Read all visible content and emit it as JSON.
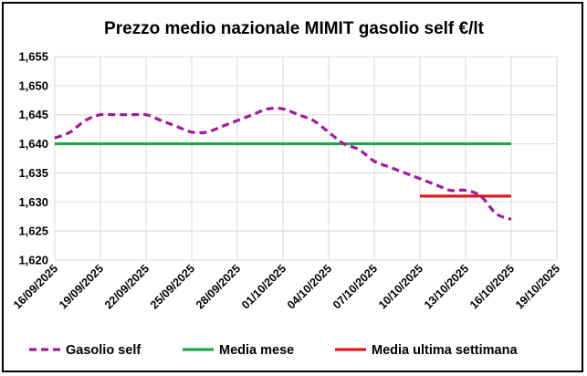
{
  "chart_data": {
    "type": "line",
    "title": "Prezzo medio nazionale MIMIT gasolio self €/lt",
    "xlabel": "",
    "ylabel": "",
    "x_ticks": [
      "16/09/2025",
      "19/09/2025",
      "22/09/2025",
      "25/09/2025",
      "28/09/2025",
      "01/10/2025",
      "04/10/2025",
      "07/10/2025",
      "10/10/2025",
      "13/10/2025",
      "16/10/2025",
      "19/10/2025"
    ],
    "y_ticks": [
      "1,620",
      "1,625",
      "1,630",
      "1,635",
      "1,640",
      "1,645",
      "1,650",
      "1,655"
    ],
    "ylim": [
      1.62,
      1.655
    ],
    "xlim_days_from_start": [
      0,
      33
    ],
    "grid": {
      "x": true,
      "y": true
    },
    "legend_position": "bottom",
    "series": [
      {
        "name": "Gasolio self",
        "style": "dashed",
        "color": "#a3189c",
        "x": [
          "16/09/2025",
          "17/09/2025",
          "18/09/2025",
          "19/09/2025",
          "20/09/2025",
          "21/09/2025",
          "22/09/2025",
          "23/09/2025",
          "24/09/2025",
          "25/09/2025",
          "26/09/2025",
          "27/09/2025",
          "28/09/2025",
          "29/09/2025",
          "30/09/2025",
          "01/10/2025",
          "02/10/2025",
          "03/10/2025",
          "04/10/2025",
          "05/10/2025",
          "06/10/2025",
          "07/10/2025",
          "08/10/2025",
          "09/10/2025",
          "10/10/2025",
          "11/10/2025",
          "12/10/2025",
          "13/10/2025",
          "14/10/2025",
          "15/10/2025",
          "16/10/2025"
        ],
        "y": [
          1.641,
          1.642,
          1.644,
          1.645,
          1.645,
          1.645,
          1.645,
          1.644,
          1.643,
          1.642,
          1.642,
          1.643,
          1.644,
          1.645,
          1.646,
          1.646,
          1.645,
          1.644,
          1.642,
          1.64,
          1.639,
          1.637,
          1.636,
          1.635,
          1.634,
          1.633,
          1.632,
          1.632,
          1.631,
          1.628,
          1.627
        ]
      },
      {
        "name": "Media mese",
        "style": "solid",
        "color": "#1fa84a",
        "x": [
          "16/09/2025",
          "16/10/2025"
        ],
        "y": [
          1.64,
          1.64
        ]
      },
      {
        "name": "Media ultima settimana",
        "style": "solid",
        "color": "#e0161b",
        "x": [
          "10/10/2025",
          "16/10/2025"
        ],
        "y": [
          1.631,
          1.631
        ]
      }
    ]
  }
}
